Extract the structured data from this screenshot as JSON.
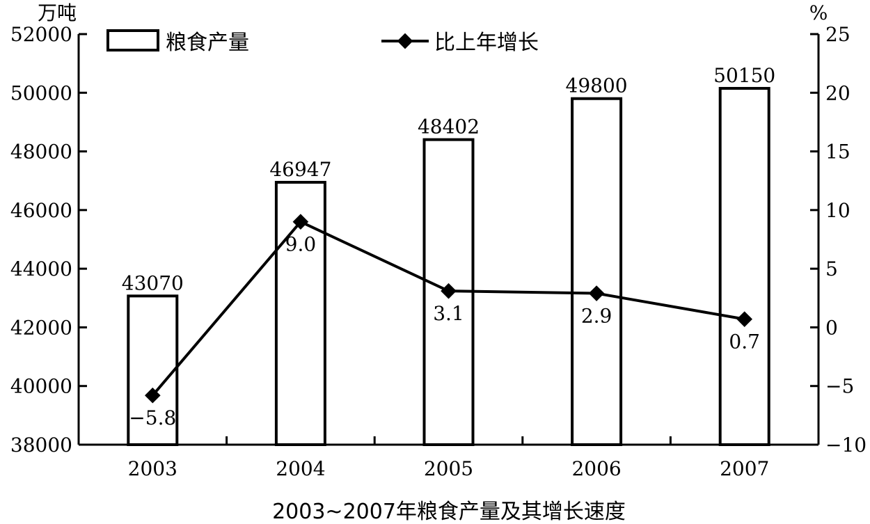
{
  "chart_data": {
    "type": "bar+line",
    "title": "2003~2007年粮食产量及其增长速度",
    "categories": [
      "2003",
      "2004",
      "2005",
      "2006",
      "2007"
    ],
    "left_axis": {
      "unit": "万吨",
      "range": [
        38000,
        52000
      ],
      "ticks": [
        "38000",
        "40000",
        "42000",
        "44000",
        "46000",
        "48000",
        "50000",
        "52000"
      ]
    },
    "right_axis": {
      "unit": "%",
      "range": [
        -10,
        25
      ],
      "ticks": [
        "-10",
        "-5",
        "0",
        "5",
        "10",
        "15",
        "20",
        "25"
      ]
    },
    "series": [
      {
        "name": "粮食产量",
        "type": "bar",
        "axis": "left",
        "values": [
          43070,
          46947,
          48402,
          49800,
          50150
        ],
        "labels": [
          "43070",
          "46947",
          "48402",
          "49800",
          "50150"
        ]
      },
      {
        "name": "比上年增长",
        "type": "line",
        "axis": "right",
        "values": [
          -5.8,
          9.0,
          3.1,
          2.9,
          0.7
        ],
        "labels": [
          "−5.8",
          "9.0",
          "3.1",
          "2.9",
          "0.7"
        ]
      }
    ],
    "legend_position": "top",
    "grid": false,
    "colors": {
      "ink": "#000000",
      "bar_fill": "#ffffff"
    }
  }
}
